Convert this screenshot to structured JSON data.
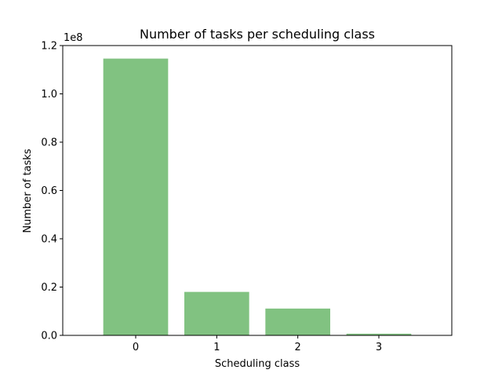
{
  "chart_data": {
    "type": "bar",
    "title": "Number of tasks per scheduling class",
    "xlabel": "Scheduling class",
    "ylabel": "Number of tasks",
    "y_scale_label": "1e8",
    "categories": [
      "0",
      "1",
      "2",
      "3"
    ],
    "values": [
      114600000,
      18000000,
      11100000,
      700000
    ],
    "ylim": [
      0,
      120000000
    ],
    "y_ticks": [
      0,
      20000000,
      40000000,
      60000000,
      80000000,
      100000000,
      120000000
    ],
    "y_tick_labels": [
      "0.0",
      "0.2",
      "0.4",
      "0.6",
      "0.8",
      "1.0",
      "1.2"
    ],
    "bar_color": "#81c281",
    "grid": false,
    "legend": "none"
  }
}
